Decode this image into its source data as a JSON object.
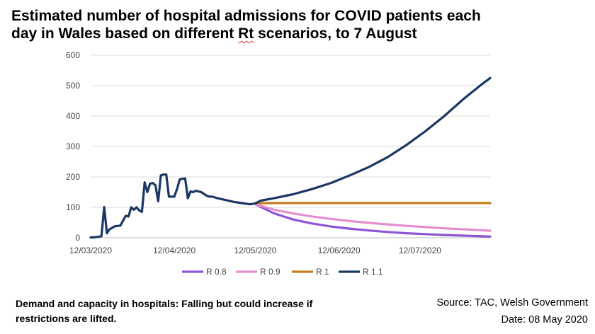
{
  "title_line1": "Estimated number of hospital admissions for COVID patients each",
  "title_line2_pre": "day in Wales based on different ",
  "title_line2_rt": "Rt",
  "title_line2_post": " scenarios, to 7 August",
  "caption": "Demand and capacity in hospitals: Falling but could increase if restrictions are lifted.",
  "source": "Source: TAC, Welsh Government",
  "date": "Date: 08 May 2020",
  "chart_data": {
    "type": "line",
    "title": "Estimated number of hospital admissions for COVID patients each day in Wales based on different Rt scenarios, to 7 August",
    "xlabel": "",
    "ylabel": "",
    "ylim": [
      0,
      600
    ],
    "yticks": [
      0,
      100,
      200,
      300,
      400,
      500,
      600
    ],
    "xlim": [
      "2020-03-12",
      "2020-08-07"
    ],
    "xticks": [
      "2020-03-12",
      "2020-04-12",
      "2020-05-12",
      "2020-06-12",
      "2020-07-12"
    ],
    "xtick_labels": [
      "12/03/2020",
      "12/04/2020",
      "12/05/2020",
      "12/06/2020",
      "12/07/2020"
    ],
    "grid": "horizontal",
    "legend": "bottom",
    "historical": {
      "color": "#1b3764",
      "x": [
        "2020-03-12",
        "2020-03-14",
        "2020-03-16",
        "2020-03-17",
        "2020-03-18",
        "2020-03-19",
        "2020-03-21",
        "2020-03-23",
        "2020-03-25",
        "2020-03-26",
        "2020-03-27",
        "2020-03-28",
        "2020-03-29",
        "2020-03-30",
        "2020-03-31",
        "2020-04-01",
        "2020-04-02",
        "2020-04-03",
        "2020-04-04",
        "2020-04-05",
        "2020-04-06",
        "2020-04-07",
        "2020-04-08",
        "2020-04-09",
        "2020-04-10",
        "2020-04-12",
        "2020-04-13",
        "2020-04-14",
        "2020-04-16",
        "2020-04-17",
        "2020-04-18",
        "2020-04-19",
        "2020-04-20",
        "2020-04-21",
        "2020-04-22",
        "2020-04-24",
        "2020-04-25",
        "2020-04-26",
        "2020-04-28",
        "2020-05-01",
        "2020-05-04",
        "2020-05-07",
        "2020-05-10",
        "2020-05-12"
      ],
      "y": [
        1,
        2,
        5,
        101,
        15,
        28,
        38,
        40,
        72,
        70,
        100,
        92,
        100,
        90,
        85,
        182,
        150,
        178,
        180,
        172,
        120,
        205,
        208,
        208,
        135,
        135,
        160,
        192,
        195,
        130,
        152,
        150,
        155,
        152,
        150,
        138,
        135,
        135,
        130,
        124,
        118,
        114,
        110,
        113
      ]
    },
    "series": [
      {
        "name": "R 0.8",
        "color": "#8e55d6",
        "x": [
          "2020-05-12",
          "2020-05-19",
          "2020-05-26",
          "2020-06-02",
          "2020-06-09",
          "2020-06-16",
          "2020-06-23",
          "2020-06-30",
          "2020-07-07",
          "2020-07-14",
          "2020-07-21",
          "2020-07-28",
          "2020-08-04",
          "2020-08-07"
        ],
        "y": [
          110,
          80,
          60,
          47,
          37,
          30,
          24,
          19,
          15,
          12,
          9,
          7,
          5,
          4
        ]
      },
      {
        "name": "R 0.9",
        "color": "#e48ed0",
        "x": [
          "2020-05-12",
          "2020-05-19",
          "2020-05-26",
          "2020-06-02",
          "2020-06-09",
          "2020-06-16",
          "2020-06-23",
          "2020-06-30",
          "2020-07-07",
          "2020-07-14",
          "2020-07-21",
          "2020-07-28",
          "2020-08-04",
          "2020-08-07"
        ],
        "y": [
          110,
          92,
          80,
          70,
          62,
          55,
          49,
          44,
          39,
          35,
          31,
          28,
          25,
          23
        ]
      },
      {
        "name": "R 1",
        "color": "#c47f1e",
        "x": [
          "2020-05-12",
          "2020-08-07"
        ],
        "y": [
          114,
          114
        ]
      },
      {
        "name": "R 1.1",
        "color": "#1b3764",
        "x": [
          "2020-05-12",
          "2020-05-14",
          "2020-05-19",
          "2020-05-26",
          "2020-06-02",
          "2020-06-09",
          "2020-06-16",
          "2020-06-23",
          "2020-06-30",
          "2020-07-07",
          "2020-07-14",
          "2020-07-21",
          "2020-07-28",
          "2020-08-04",
          "2020-08-07"
        ],
        "y": [
          113,
          122,
          130,
          143,
          160,
          180,
          205,
          232,
          265,
          305,
          350,
          400,
          455,
          505,
          525
        ]
      }
    ]
  }
}
